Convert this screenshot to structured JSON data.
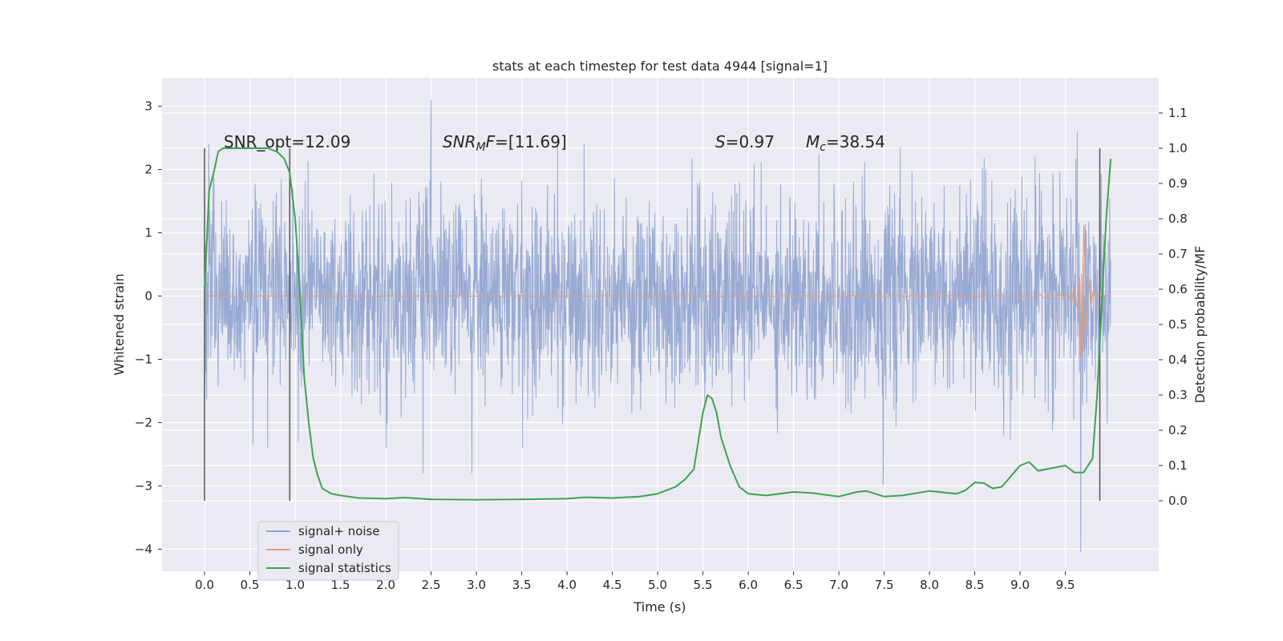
{
  "chart_data": {
    "type": "line",
    "title": "stats at each timestep for test data 4944 [signal=1]",
    "xlabel": "Time (s)",
    "ylabel_left": "Whitened strain",
    "ylabel_right": "Detection probability/MF",
    "xlim": [
      -0.47,
      10.53
    ],
    "ylim_left": [
      -4.35,
      3.45
    ],
    "ylim_right": [
      -0.2,
      1.2
    ],
    "x_ticks": [
      0.0,
      0.5,
      1.0,
      1.5,
      2.0,
      2.5,
      3.0,
      3.5,
      4.0,
      4.5,
      5.0,
      5.5,
      6.0,
      6.5,
      7.0,
      7.5,
      8.0,
      8.5,
      9.0,
      9.5
    ],
    "x_tick_labels": [
      "0.0",
      "0.5",
      "1.0",
      "1.5",
      "2.0",
      "2.5",
      "3.0",
      "3.5",
      "4.0",
      "4.5",
      "5.0",
      "5.5",
      "6.0",
      "6.5",
      "7.0",
      "7.5",
      "8.0",
      "8.5",
      "9.0",
      "9.5"
    ],
    "y_left_ticks": [
      3,
      2,
      1,
      0,
      -1,
      -2,
      -3,
      -4
    ],
    "y_left_tick_labels": [
      "3",
      "2",
      "1",
      "0",
      "−1",
      "−2",
      "−3",
      "−4"
    ],
    "y_right_ticks": [
      1.1,
      1.0,
      0.9,
      0.8,
      0.7,
      0.6,
      0.5,
      0.4,
      0.3,
      0.2,
      0.1,
      0.0
    ],
    "y_right_tick_labels": [
      "1.1",
      "1.0",
      "0.9",
      "0.8",
      "0.7",
      "0.6",
      "0.5",
      "0.4",
      "0.3",
      "0.2",
      "0.1",
      "0.0"
    ],
    "grid": true,
    "legend_position": "lower-left",
    "annotations": [
      {
        "text": "SNR_opt=12.09",
        "x": 0.2,
        "y_right": 1.0
      },
      {
        "text_italic": "SNR",
        "sub": "M",
        "text_italic2": "F",
        "text_rest": "=[11.69]",
        "x": 2.6,
        "y_right": 1.0
      },
      {
        "text_italic": "S",
        "text_rest": "=0.97",
        "x": 5.6,
        "y_right": 1.0
      },
      {
        "text_italic": "M",
        "sub_italic": "c",
        "text_rest": "=38.54",
        "x": 6.6,
        "y_right": 1.0
      }
    ],
    "vertical_lines": [
      0.0,
      0.94,
      9.88
    ],
    "vertical_line_range_right": [
      0.0,
      1.0
    ],
    "series": [
      {
        "name": "signal+ noise",
        "color": "#8fa3cf",
        "axis": "left",
        "x_range": [
          0.0,
          10.0
        ],
        "envelope_typical": 1.2,
        "notable_peaks": [
          {
            "x": 2.5,
            "y": 3.1
          },
          {
            "x": 2.41,
            "y": -2.8
          },
          {
            "x": 2.95,
            "y": -2.8
          },
          {
            "x": 7.49,
            "y": -2.98
          },
          {
            "x": 9.63,
            "y": 2.6
          },
          {
            "x": 9.67,
            "y": -4.05
          }
        ]
      },
      {
        "name": "signal only",
        "color": "#e09e7f",
        "axis": "left",
        "description_chirp_end": 9.68,
        "peak_amplitude": 2.25
      },
      {
        "name": "signal statistics",
        "color": "#3fa24f",
        "axis": "right",
        "x": [
          0.0,
          0.05,
          0.1,
          0.15,
          0.2,
          0.3,
          0.4,
          0.5,
          0.6,
          0.7,
          0.8,
          0.88,
          0.94,
          1.0,
          1.05,
          1.1,
          1.15,
          1.2,
          1.25,
          1.3,
          1.4,
          1.5,
          1.7,
          2.0,
          2.2,
          2.5,
          3.0,
          3.5,
          4.0,
          4.2,
          4.5,
          4.8,
          5.0,
          5.2,
          5.3,
          5.4,
          5.5,
          5.55,
          5.6,
          5.65,
          5.7,
          5.8,
          5.9,
          6.0,
          6.2,
          6.5,
          6.7,
          7.0,
          7.2,
          7.3,
          7.5,
          7.7,
          8.0,
          8.3,
          8.4,
          8.5,
          8.6,
          8.7,
          8.8,
          8.9,
          9.0,
          9.1,
          9.2,
          9.3,
          9.5,
          9.6,
          9.7,
          9.8,
          9.85,
          9.9,
          9.95,
          10.0
        ],
        "y": [
          0.6,
          0.88,
          0.93,
          0.99,
          1.0,
          1.0,
          1.0,
          1.0,
          1.0,
          1.0,
          0.99,
          0.97,
          0.93,
          0.8,
          0.6,
          0.35,
          0.22,
          0.12,
          0.07,
          0.035,
          0.02,
          0.015,
          0.008,
          0.006,
          0.009,
          0.004,
          0.003,
          0.004,
          0.006,
          0.01,
          0.008,
          0.012,
          0.02,
          0.04,
          0.06,
          0.09,
          0.25,
          0.3,
          0.29,
          0.25,
          0.18,
          0.1,
          0.04,
          0.02,
          0.015,
          0.025,
          0.022,
          0.012,
          0.025,
          0.028,
          0.012,
          0.015,
          0.028,
          0.02,
          0.03,
          0.052,
          0.05,
          0.035,
          0.04,
          0.07,
          0.1,
          0.11,
          0.085,
          0.09,
          0.1,
          0.08,
          0.08,
          0.12,
          0.3,
          0.55,
          0.8,
          0.97
        ]
      }
    ]
  }
}
